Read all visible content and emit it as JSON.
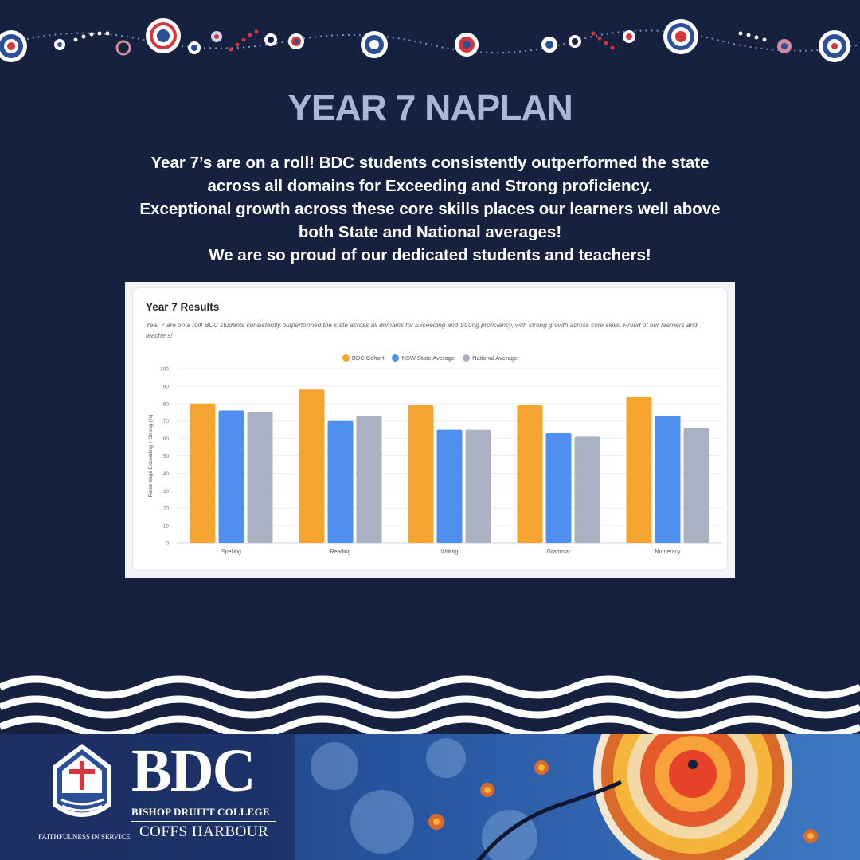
{
  "header": {
    "headline": "YEAR 7 NAPLAN",
    "intro_lines": [
      "Year 7’s are on a roll! BDC students consistently outperformed the state",
      "across all domains for Exceeding and Strong proficiency.",
      "Exceptional growth across these core skills places our learners well above",
      "both State and National averages!",
      "We are so proud of our dedicated students and teachers!"
    ]
  },
  "card": {
    "title": "Year 7 Results",
    "description": "Year 7 are on a roll! BDC students consistently outperformed the state across all domains for Exceeding and Strong proficiency, with strong growth across core skills. Proud of our learners and teachers!"
  },
  "chart_data": {
    "type": "bar",
    "categories": [
      "Spelling",
      "Reading",
      "Writing",
      "Grammar",
      "Numeracy"
    ],
    "series": [
      {
        "name": "BDC Cohort",
        "color": "#f5a52f",
        "values": [
          80,
          88,
          79,
          79,
          84
        ]
      },
      {
        "name": "NSW State Average",
        "color": "#4f8ff0",
        "values": [
          76,
          70,
          65,
          63,
          73
        ]
      },
      {
        "name": "National Average",
        "color": "#a9b1c3",
        "values": [
          75,
          73,
          65,
          61,
          66
        ]
      }
    ],
    "ylabel": "Percentage Exceeding + Strong (%)",
    "xlabel": "",
    "ylim": [
      0,
      100
    ],
    "yticks": [
      0,
      10,
      20,
      30,
      40,
      50,
      60,
      70,
      80,
      90,
      100
    ],
    "grid": true,
    "legend": "top-center"
  },
  "footer": {
    "brand": "BDC",
    "school_name": "BISHOP DRUITT COLLEGE",
    "campus": "COFFS HARBOUR",
    "motto": "FAITHFULNESS IN SERVICE"
  },
  "colors": {
    "background": "#16213f",
    "headline": "#a9b6d6",
    "accent_red": "#d8343c"
  }
}
